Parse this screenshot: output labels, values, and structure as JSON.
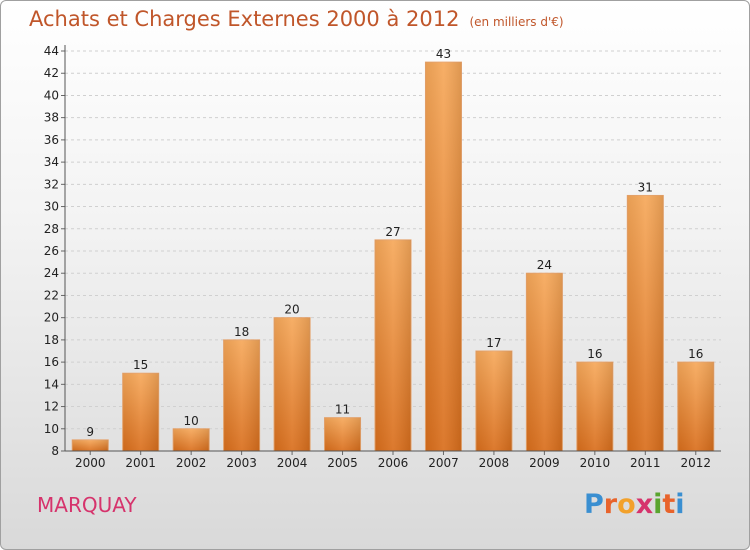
{
  "title": "Achats et Charges Externes 2000 à 2012",
  "subtitle": "(en milliers d'€)",
  "location": "MARQUAY",
  "logo": {
    "letters": [
      "P",
      "r",
      "o",
      "x",
      "i",
      "t",
      "i"
    ],
    "colors": [
      "#3a8fd1",
      "#e8632b",
      "#f2a12b",
      "#d6336c",
      "#5aa52f",
      "#e8632b",
      "#3a8fd1"
    ]
  },
  "colors": {
    "bar_top": "#f6a85a",
    "bar_bottom": "#d96e1c",
    "title": "#c0562a",
    "location": "#d6336c"
  },
  "chart_data": {
    "type": "bar",
    "categories": [
      "2000",
      "2001",
      "2002",
      "2003",
      "2004",
      "2005",
      "2006",
      "2007",
      "2008",
      "2009",
      "2010",
      "2011",
      "2012"
    ],
    "values": [
      9,
      15,
      10,
      18,
      20,
      11,
      27,
      43,
      17,
      24,
      16,
      31,
      16
    ],
    "title": "Achats et Charges Externes 2000 à 2012",
    "subtitle": "(en milliers d'€)",
    "xlabel": "",
    "ylabel": "",
    "ylim": [
      8,
      44
    ],
    "yticks": [
      8,
      10,
      12,
      14,
      16,
      18,
      20,
      22,
      24,
      26,
      28,
      30,
      32,
      34,
      36,
      38,
      40,
      42,
      44
    ],
    "grid": true,
    "legend": "none"
  }
}
